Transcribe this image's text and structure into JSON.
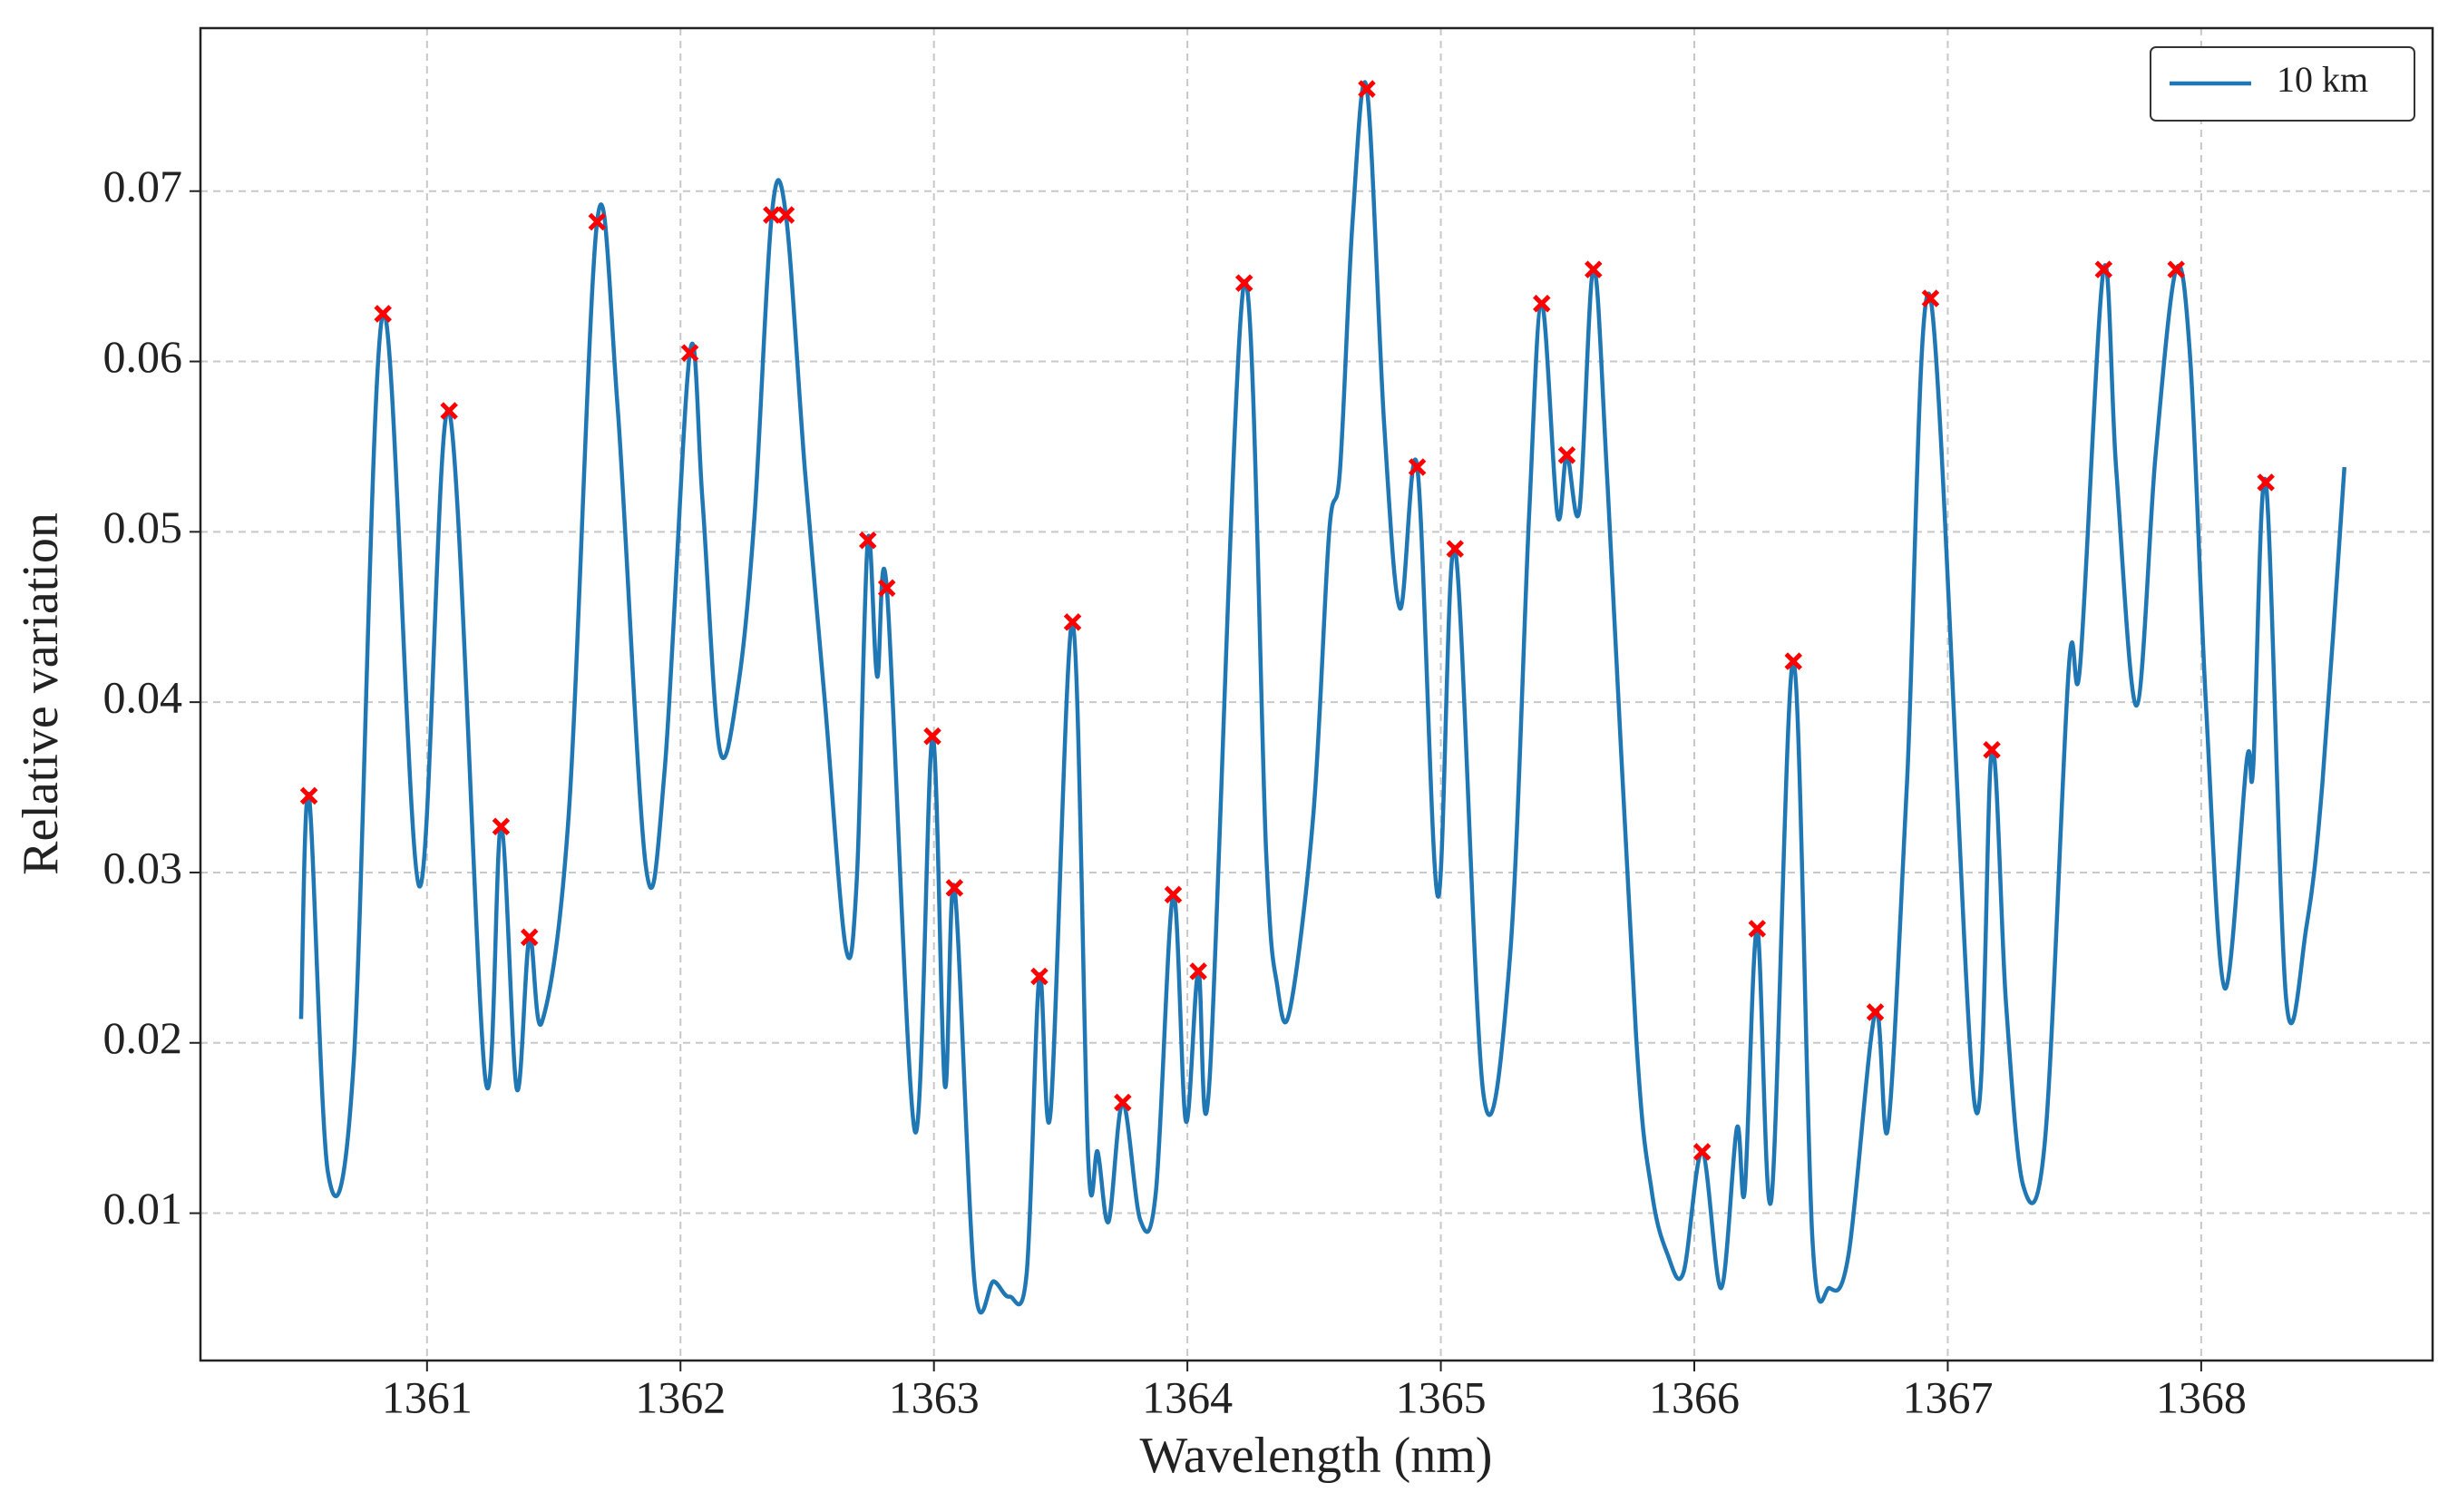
{
  "chart_data": {
    "type": "line",
    "xlabel": "Wavelength (nm)",
    "ylabel": "Relative variation",
    "xlim": [
      1360.106,
      1368.913
    ],
    "ylim": [
      0.00135,
      0.07957
    ],
    "xticks": [
      1361,
      1362,
      1363,
      1364,
      1365,
      1366,
      1367,
      1368
    ],
    "yticks": [
      0.01,
      0.02,
      0.03,
      0.04,
      0.05,
      0.06,
      0.07
    ],
    "grid": true,
    "legend": "upper right",
    "series": [
      {
        "name": "10 km",
        "color": "#1f77b4",
        "x": [
          1360.503,
          1360.534,
          1360.609,
          1360.71,
          1360.826,
          1360.969,
          1361.087,
          1361.23,
          1361.292,
          1361.354,
          1361.404,
          1361.453,
          1361.559,
          1361.671,
          1361.752,
          1361.863,
          1361.938,
          1362.037,
          1362.087,
          1362.155,
          1362.23,
          1362.292,
          1362.36,
          1362.416,
          1362.491,
          1362.571,
          1362.652,
          1362.696,
          1362.739,
          1362.776,
          1362.814,
          1362.925,
          1362.994,
          1363.043,
          1363.081,
          1363.161,
          1363.236,
          1363.298,
          1363.366,
          1363.416,
          1363.46,
          1363.547,
          1363.609,
          1363.646,
          1363.689,
          1363.745,
          1363.814,
          1363.876,
          1363.944,
          1363.994,
          1364.043,
          1364.087,
          1364.224,
          1364.311,
          1364.354,
          1364.404,
          1364.497,
          1364.559,
          1364.602,
          1364.652,
          1364.708,
          1364.776,
          1364.839,
          1364.907,
          1364.988,
          1365.056,
          1365.168,
          1365.273,
          1365.348,
          1365.398,
          1365.46,
          1365.497,
          1365.547,
          1365.602,
          1365.658,
          1365.77,
          1365.832,
          1365.894,
          1365.957,
          1366.031,
          1366.106,
          1366.168,
          1366.199,
          1366.248,
          1366.304,
          1366.391,
          1366.466,
          1366.534,
          1366.609,
          1366.714,
          1366.764,
          1366.839,
          1366.932,
          1367.106,
          1367.174,
          1367.23,
          1367.298,
          1367.385,
          1367.478,
          1367.522,
          1367.615,
          1367.665,
          1367.745,
          1367.82,
          1367.901,
          1367.957,
          1368.019,
          1368.093,
          1368.18,
          1368.205,
          1368.255,
          1368.335,
          1368.416,
          1368.478,
          1368.565
        ],
        "values": [
          0.0214,
          0.0345,
          0.0124,
          0.0187,
          0.0628,
          0.0292,
          0.0571,
          0.0179,
          0.0327,
          0.0173,
          0.0262,
          0.0212,
          0.0334,
          0.0682,
          0.0573,
          0.0304,
          0.0361,
          0.0605,
          0.0518,
          0.0372,
          0.0412,
          0.0509,
          0.0686,
          0.0686,
          0.0536,
          0.0398,
          0.0256,
          0.0297,
          0.0495,
          0.0415,
          0.0467,
          0.0148,
          0.038,
          0.0175,
          0.0291,
          0.0058,
          0.006,
          0.0051,
          0.0065,
          0.0239,
          0.0159,
          0.0447,
          0.0131,
          0.0136,
          0.0095,
          0.0165,
          0.0096,
          0.0113,
          0.0287,
          0.0154,
          0.0242,
          0.0177,
          0.0646,
          0.0311,
          0.0234,
          0.0219,
          0.0334,
          0.0499,
          0.0536,
          0.0683,
          0.076,
          0.0564,
          0.0455,
          0.0538,
          0.0286,
          0.049,
          0.017,
          0.0251,
          0.0509,
          0.0634,
          0.051,
          0.0545,
          0.0513,
          0.0654,
          0.0527,
          0.0205,
          0.0113,
          0.0076,
          0.0065,
          0.0136,
          0.0056,
          0.015,
          0.0113,
          0.0267,
          0.0108,
          0.0424,
          0.0085,
          0.0056,
          0.0076,
          0.0218,
          0.015,
          0.0352,
          0.0637,
          0.0164,
          0.0372,
          0.0223,
          0.0116,
          0.0145,
          0.0421,
          0.0421,
          0.0654,
          0.0536,
          0.0398,
          0.0545,
          0.0654,
          0.0601,
          0.0398,
          0.0232,
          0.0366,
          0.0361,
          0.0529,
          0.0226,
          0.0269,
          0.0352,
          0.0538
        ]
      }
    ],
    "peaks": {
      "color": "#ff0000",
      "x": [
        1360.534,
        1360.826,
        1361.087,
        1361.292,
        1361.404,
        1361.671,
        1362.037,
        1362.36,
        1362.416,
        1362.739,
        1362.814,
        1362.994,
        1363.081,
        1363.416,
        1363.547,
        1363.745,
        1363.944,
        1364.043,
        1364.224,
        1364.708,
        1364.907,
        1365.056,
        1365.398,
        1365.497,
        1365.602,
        1366.031,
        1366.248,
        1366.391,
        1366.714,
        1366.932,
        1367.174,
        1367.615,
        1367.901,
        1368.255
      ],
      "values": [
        0.0345,
        0.0628,
        0.0571,
        0.0327,
        0.0262,
        0.0682,
        0.0605,
        0.0686,
        0.0686,
        0.0495,
        0.0467,
        0.038,
        0.0291,
        0.0239,
        0.0447,
        0.0165,
        0.0287,
        0.0242,
        0.0646,
        0.076,
        0.0538,
        0.049,
        0.0634,
        0.0545,
        0.0654,
        0.0136,
        0.0267,
        0.0424,
        0.0218,
        0.0637,
        0.0372,
        0.0654,
        0.0654,
        0.0529
      ]
    }
  }
}
